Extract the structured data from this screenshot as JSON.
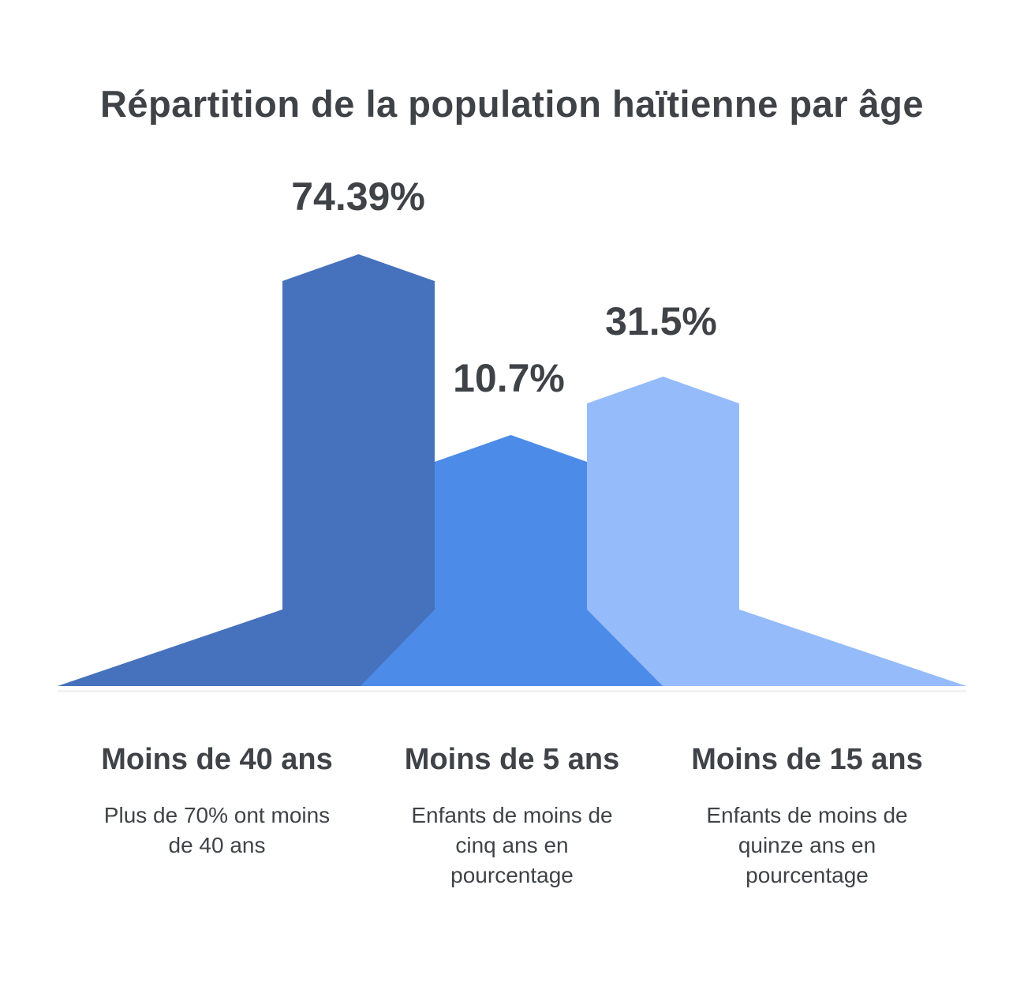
{
  "title": "Répartition de la population haïtienne par âge",
  "chart_data": {
    "type": "bar",
    "variant": "pictorial mountain-peak columns",
    "title": "Répartition de la population haïtienne par âge",
    "categories": [
      "Moins de 40 ans",
      "Moins de 5 ans",
      "Moins de 15 ans"
    ],
    "values": [
      74.39,
      10.7,
      31.5
    ],
    "value_labels": [
      "74.39%",
      "10.7%",
      "31.5%"
    ],
    "descriptions": [
      "Plus de 70% ont moins\nde 40 ans",
      "Enfants de moins de\ncinq ans en\npourcentage",
      "Enfants de moins de\nquinze ans en\npourcentage"
    ],
    "colors": [
      "#4671BD",
      "#4D8BE8",
      "#95BBFB"
    ],
    "text_color": "#3F4347",
    "background": "#FFFFFF",
    "xlabel": "",
    "ylabel": "",
    "legend": "none",
    "grid": false,
    "axes": "hidden"
  }
}
